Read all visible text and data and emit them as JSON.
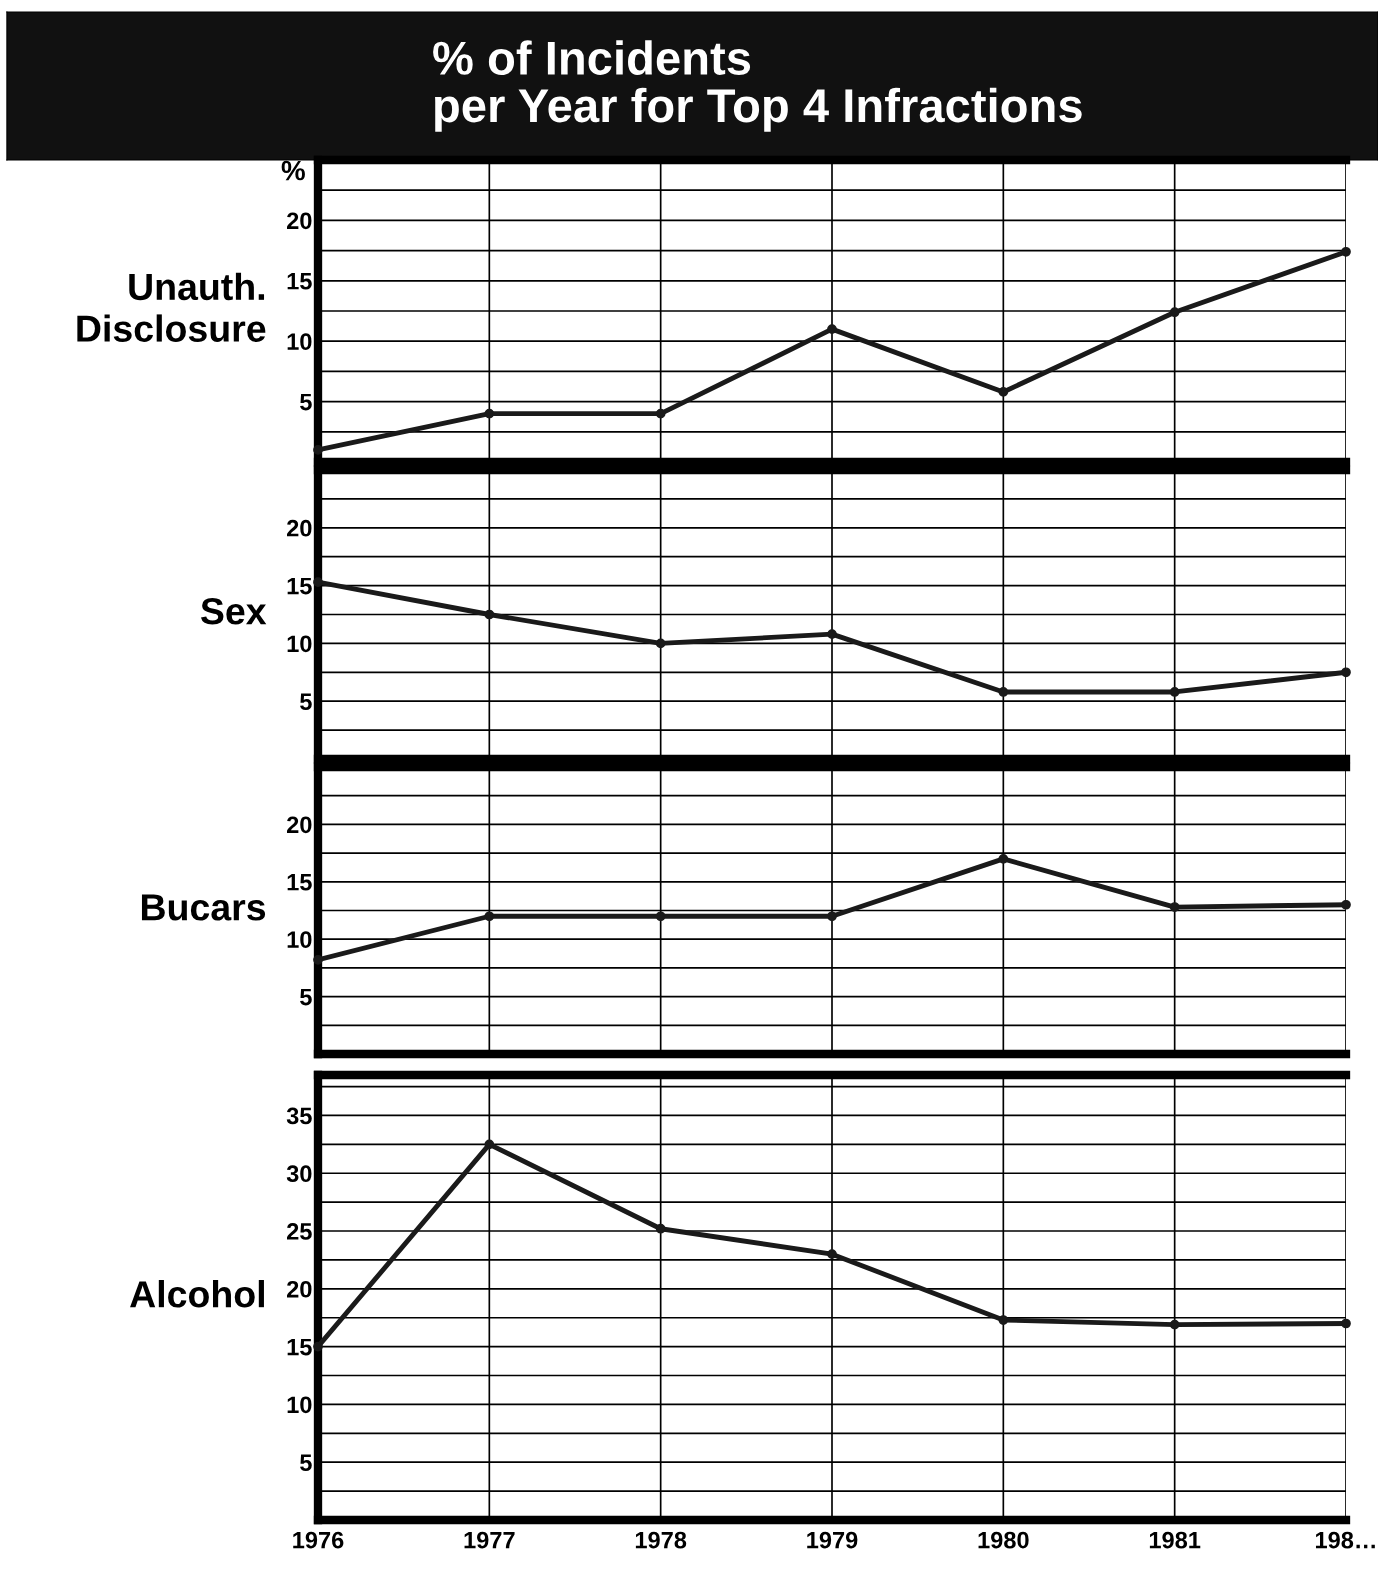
{
  "chart_data": [
    {
      "type": "other",
      "title": "% of Incidents\nper Year for Top 4 Infractions"
    },
    {
      "type": "line",
      "title": "Unauth.\nDisclosure",
      "ylabel": "%",
      "x": [
        1976,
        1977,
        1978,
        1979,
        1980,
        1981,
        1982
      ],
      "series": [
        {
          "color": "#1a1a1a",
          "values": [
            1,
            4,
            4,
            11,
            5.8,
            12.4,
            17.4
          ]
        }
      ],
      "xlim": [
        1976,
        1982
      ],
      "xticks": [
        1976,
        1977,
        1978,
        1979,
        1980,
        1981,
        1982
      ],
      "ylim": [
        0,
        25
      ],
      "yticks": [
        {
          "value": 2.5,
          "label": null
        },
        5,
        {
          "value": 7.5,
          "label": null
        },
        10,
        {
          "value": 12.5,
          "label": null
        },
        15,
        {
          "value": 17.5,
          "label": null
        },
        20,
        {
          "value": 22.5,
          "label": null
        }
      ],
      "grid": true,
      "marker": "circle",
      "line_style": "solid",
      "tick_labels": "y"
    },
    {
      "type": "line",
      "title": "Sex",
      "x": [
        1976,
        1977,
        1978,
        1979,
        1980,
        1981,
        1982
      ],
      "series": [
        {
          "color": "#1a1a1a",
          "values": [
            15.3,
            12.5,
            10,
            10.8,
            5.8,
            5.8,
            7.5
          ]
        }
      ],
      "xlim": [
        1976,
        1982
      ],
      "xticks": [
        1976,
        1977,
        1978,
        1979,
        1980,
        1981,
        1982
      ],
      "ylim": [
        0,
        25
      ],
      "yticks": [
        {
          "value": 2.5,
          "label": null
        },
        5,
        {
          "value": 7.5,
          "label": null
        },
        10,
        {
          "value": 12.5,
          "label": null
        },
        15,
        {
          "value": 17.5,
          "label": null
        },
        20,
        {
          "value": 22.5,
          "label": null
        }
      ],
      "grid": true,
      "marker": "circle",
      "line_style": "solid",
      "tick_labels": "y"
    },
    {
      "type": "line",
      "title": "Bucars",
      "x": [
        1976,
        1977,
        1978,
        1979,
        1980,
        1981,
        1982
      ],
      "series": [
        {
          "color": "#1a1a1a",
          "values": [
            8.2,
            12,
            12,
            12,
            17,
            12.8,
            13
          ]
        }
      ],
      "xlim": [
        1976,
        1982
      ],
      "xticks": [
        1976,
        1977,
        1978,
        1979,
        1980,
        1981,
        1982
      ],
      "ylim": [
        0,
        25
      ],
      "yticks": [
        {
          "value": 2.5,
          "label": null
        },
        5,
        {
          "value": 7.5,
          "label": null
        },
        10,
        {
          "value": 12.5,
          "label": null
        },
        15,
        {
          "value": 17.5,
          "label": null
        },
        20,
        {
          "value": 22.5,
          "label": null
        }
      ],
      "grid": true,
      "marker": "circle",
      "line_style": "solid",
      "tick_labels": "y"
    },
    {
      "type": "line",
      "title": "Alcohol",
      "x": [
        1976,
        1977,
        1978,
        1979,
        1980,
        1981,
        1982
      ],
      "series": [
        {
          "color": "#1a1a1a",
          "values": [
            15,
            32.5,
            25.2,
            23,
            17.3,
            16.9,
            17
          ]
        }
      ],
      "xlim": [
        1976,
        1982
      ],
      "xticks": [
        1976,
        1977,
        1978,
        1979,
        1980,
        1981,
        {
          "value": 1982,
          "label": "198…"
        }
      ],
      "ylim": [
        0,
        38.5
      ],
      "yticks": [
        {
          "value": 2.5,
          "label": null
        },
        5,
        {
          "value": 7.5,
          "label": null
        },
        10,
        {
          "value": 12.5,
          "label": null
        },
        15,
        {
          "value": 17.5,
          "label": null
        },
        20,
        {
          "value": 22.5,
          "label": null
        },
        25,
        {
          "value": 27.5,
          "label": null
        },
        30,
        {
          "value": 32.5,
          "label": null
        },
        35,
        {
          "value": 37.5,
          "label": null
        }
      ],
      "grid": true,
      "marker": "circle",
      "line_style": "solid"
    }
  ]
}
